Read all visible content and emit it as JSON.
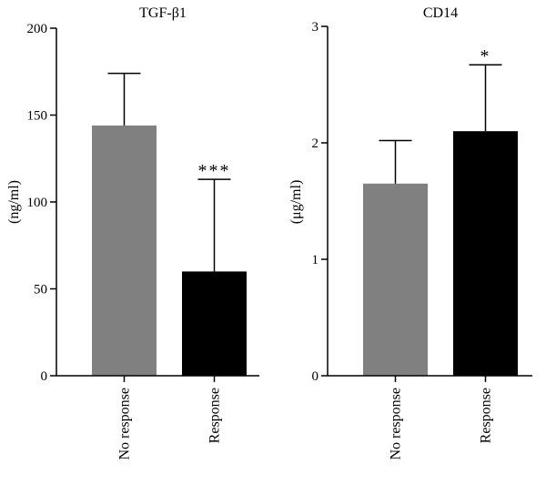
{
  "chart_data": [
    {
      "type": "bar",
      "title": "TGF-β1",
      "ylabel": "(ng/ml)",
      "xlabel": "",
      "ylim": [
        0,
        200
      ],
      "yticks": [
        0,
        50,
        100,
        150,
        200
      ],
      "grid": false,
      "categories": [
        "No response",
        "Response"
      ],
      "values": [
        144,
        60
      ],
      "errors": [
        30,
        53
      ],
      "bar_colors": [
        "#808080",
        "#000000"
      ],
      "significance": [
        "",
        "***"
      ]
    },
    {
      "type": "bar",
      "title": "CD14",
      "ylabel": "(μg/ml)",
      "xlabel": "",
      "ylim": [
        0,
        3
      ],
      "yticks": [
        0,
        1,
        2,
        3
      ],
      "grid": false,
      "categories": [
        "No response",
        "Response"
      ],
      "values": [
        1.65,
        2.1
      ],
      "errors": [
        0.37,
        0.57
      ],
      "bar_colors": [
        "#808080",
        "#000000"
      ],
      "significance": [
        "",
        "*"
      ]
    }
  ]
}
